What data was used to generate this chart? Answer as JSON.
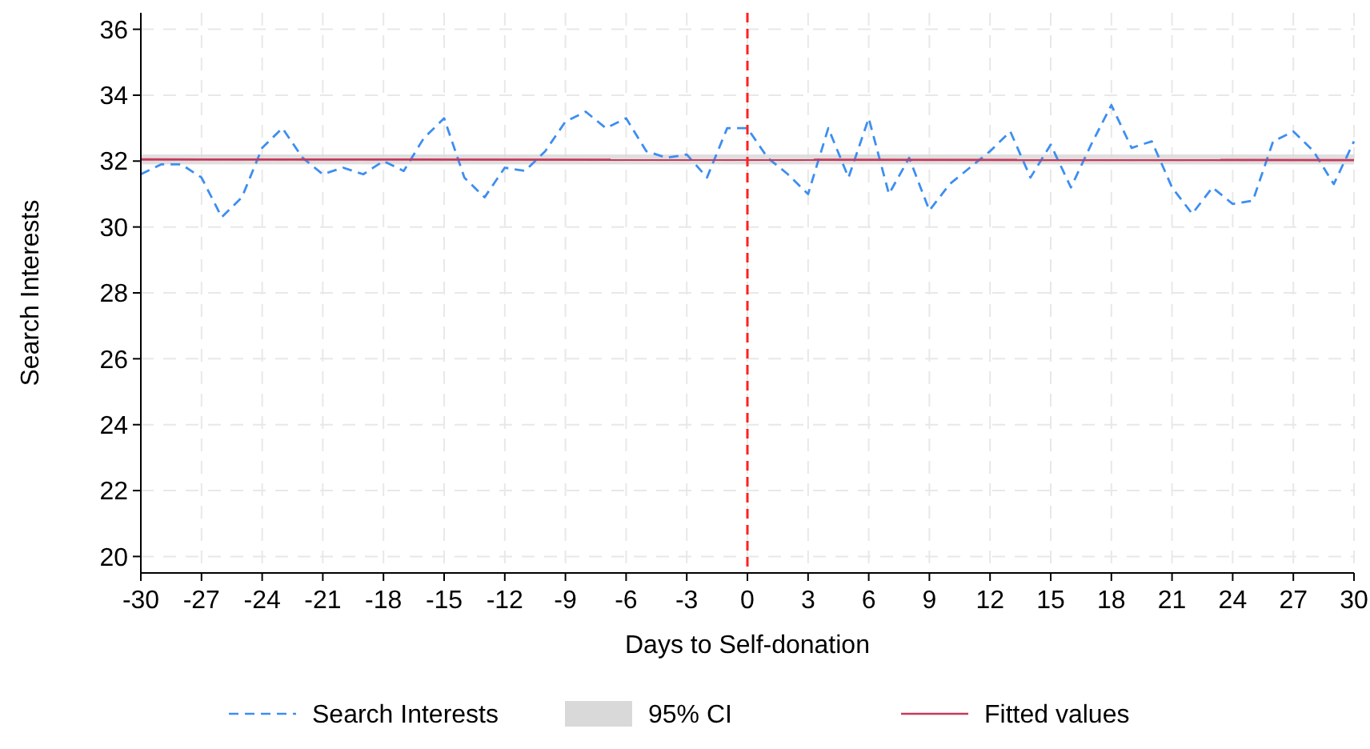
{
  "chart_data": {
    "type": "line",
    "xlabel": "Days to Self-donation",
    "ylabel": "Search Interests",
    "x": [
      -30,
      -29,
      -28,
      -27,
      -26,
      -25,
      -24,
      -23,
      -22,
      -21,
      -20,
      -19,
      -18,
      -17,
      -16,
      -15,
      -14,
      -13,
      -12,
      -11,
      -10,
      -9,
      -8,
      -7,
      -6,
      -5,
      -4,
      -3,
      -2,
      -1,
      0,
      1,
      2,
      3,
      4,
      5,
      6,
      7,
      8,
      9,
      10,
      11,
      12,
      13,
      14,
      15,
      16,
      17,
      18,
      19,
      20,
      21,
      22,
      23,
      24,
      25,
      26,
      27,
      28,
      29,
      30
    ],
    "series": [
      {
        "name": "Search Interests",
        "color": "#3d8ef0",
        "line_style": "dashed",
        "values": [
          31.6,
          31.9,
          31.9,
          31.5,
          30.3,
          30.9,
          32.4,
          33.0,
          32.1,
          31.6,
          31.8,
          31.6,
          32.0,
          31.7,
          32.7,
          33.3,
          31.5,
          30.9,
          31.8,
          31.7,
          32.3,
          33.2,
          33.5,
          33.0,
          33.3,
          32.3,
          32.1,
          32.2,
          31.5,
          33.0,
          33.0,
          32.1,
          31.6,
          31.0,
          33.0,
          31.5,
          33.3,
          31.0,
          32.1,
          30.5,
          31.3,
          31.8,
          32.3,
          32.9,
          31.5,
          32.5,
          31.2,
          32.5,
          33.7,
          32.4,
          32.6,
          31.2,
          30.4,
          31.2,
          30.7,
          30.8,
          32.6,
          32.9,
          32.3,
          31.3,
          32.6
        ]
      },
      {
        "name": "Fitted values",
        "color": "#c8385a",
        "line_style": "solid",
        "x": [
          -30,
          30
        ],
        "values": [
          32.05,
          32.03
        ]
      }
    ],
    "xlim": [
      -30,
      30
    ],
    "xticks": [
      -30,
      -27,
      -24,
      -21,
      -18,
      -15,
      -12,
      -9,
      -6,
      -3,
      0,
      3,
      6,
      9,
      12,
      15,
      18,
      21,
      24,
      27,
      30
    ],
    "ylim": [
      19.5,
      36.5
    ],
    "yticks": [
      20,
      22,
      24,
      26,
      28,
      30,
      32,
      34,
      36
    ],
    "bands": [
      {
        "axis": "y",
        "from": 31.9,
        "to": 32.2,
        "label": "95% CI",
        "color": "#d9d9d9"
      }
    ],
    "ref_lines": [
      {
        "axis": "x",
        "value": 0,
        "color": "#ff2020",
        "line_style": "dashed"
      }
    ],
    "grid": true,
    "legend": "bottom",
    "marker": "none"
  }
}
